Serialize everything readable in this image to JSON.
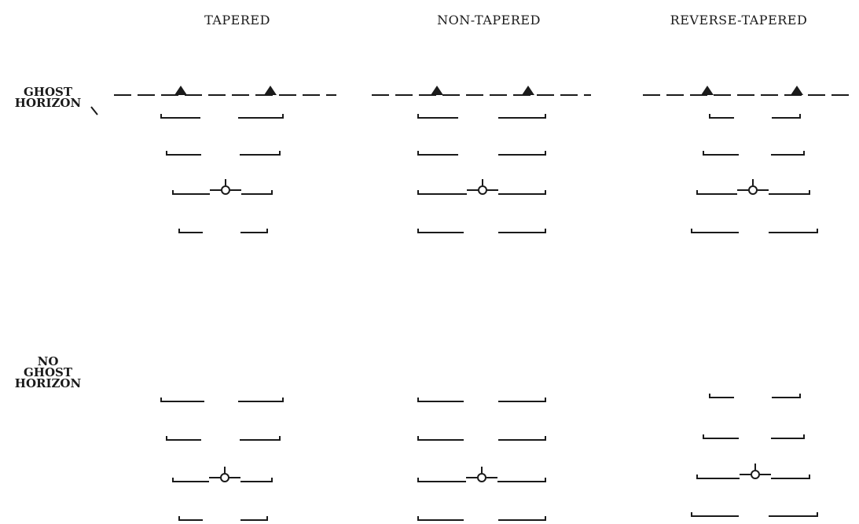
{
  "columns": [
    {
      "label": "TAPERED"
    },
    {
      "label": "NON-TAPERED"
    },
    {
      "label": "REVERSE-TAPERED"
    }
  ],
  "rows": [
    {
      "lines": [
        "GHOST",
        "HORIZON"
      ]
    },
    {
      "lines": [
        "NO",
        "GHOST",
        "HORIZON"
      ]
    }
  ],
  "colors": {
    "ink": "#1a1a1a",
    "background": "#ffffff"
  },
  "icons": [
    "aircraft-reference-symbol-icon",
    "horizon-peak-icon"
  ]
}
